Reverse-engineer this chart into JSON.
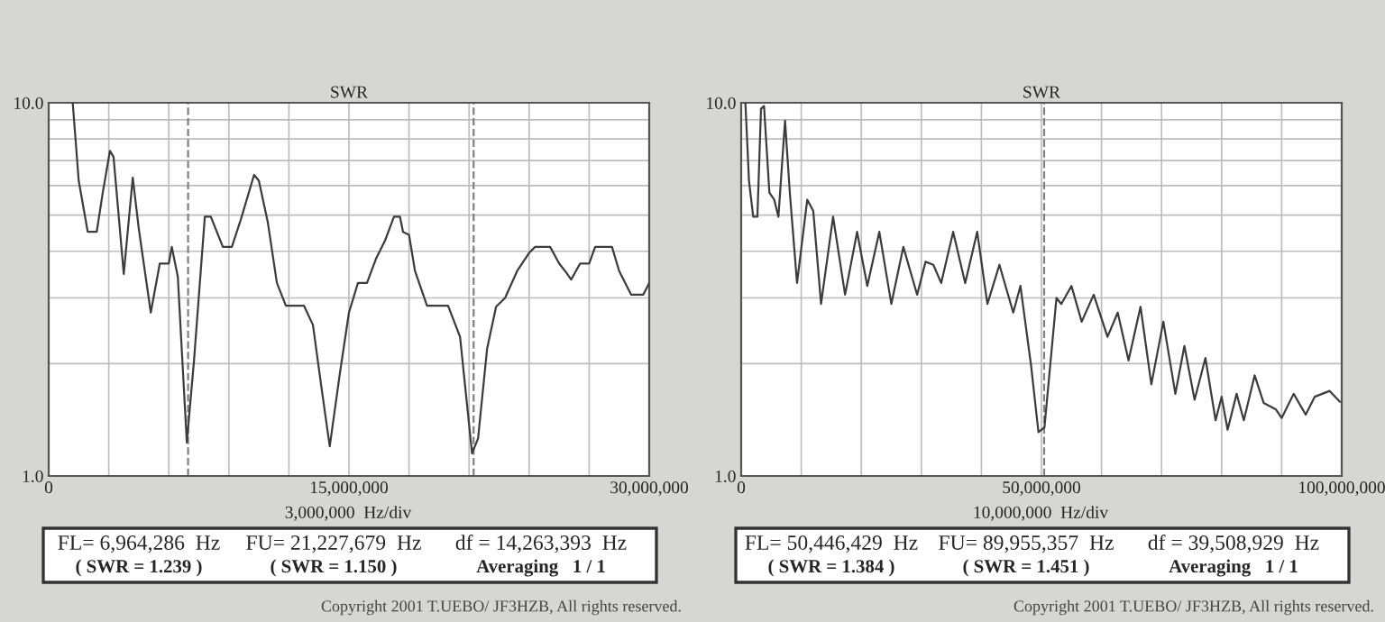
{
  "chart_data": [
    {
      "type": "line",
      "title": "SWR",
      "xlabel": "3,000,000  Hz/div",
      "log": "y",
      "grid": true,
      "marker": "none",
      "line_style": "solid",
      "xlim": [
        0,
        30000000
      ],
      "ylim": [
        1,
        10
      ],
      "xticks": [
        {
          "value": 0,
          "label": "0"
        },
        {
          "value": 3000000,
          "label": null
        },
        {
          "value": 6000000,
          "label": null
        },
        {
          "value": 9000000,
          "label": null
        },
        {
          "value": 12000000,
          "label": null
        },
        {
          "value": 15000000,
          "label": "15,000,000"
        },
        {
          "value": 18000000,
          "label": null
        },
        {
          "value": 21000000,
          "label": null
        },
        {
          "value": 24000000,
          "label": null
        },
        {
          "value": 27000000,
          "label": null
        },
        {
          "value": 30000000,
          "label": "30,000,000"
        }
      ],
      "yticks": [
        {
          "value": 1,
          "label": "1.0"
        },
        {
          "value": 2,
          "label": null
        },
        {
          "value": 3,
          "label": null
        },
        {
          "value": 4,
          "label": null
        },
        {
          "value": 5,
          "label": null
        },
        {
          "value": 6,
          "label": null
        },
        {
          "value": 7,
          "label": null
        },
        {
          "value": 8,
          "label": null
        },
        {
          "value": 9,
          "label": null
        },
        {
          "value": 10,
          "label": "10.0"
        }
      ],
      "ref_lines": [
        {
          "axis": "x",
          "value": 6964286,
          "color": "#808080",
          "line_style": "dashed"
        },
        {
          "axis": "x",
          "value": 21227679,
          "color": "#808080",
          "line_style": "dashed"
        }
      ],
      "series": [
        {
          "color": "#3c3c3c",
          "x": [
            1200000,
            1500000,
            1950000,
            2400000,
            2700000,
            3060000,
            3240000,
            3750000,
            4200000,
            4500000,
            5100000,
            5550000,
            6000000,
            6150000,
            6450000,
            6900000,
            7260000,
            7800000,
            8100000,
            8700000,
            9150000,
            9600000,
            10260000,
            10500000,
            10950000,
            11400000,
            11850000,
            12750000,
            13200000,
            13650000,
            14040000,
            14550000,
            15000000,
            15450000,
            15900000,
            16350000,
            16800000,
            17250000,
            17550000,
            17700000,
            18000000,
            18300000,
            18900000,
            19950000,
            20550000,
            21150000,
            21450000,
            21900000,
            22350000,
            22800000,
            23400000,
            24000000,
            24300000,
            25050000,
            25500000,
            25800000,
            26100000,
            26550000,
            27000000,
            27300000,
            28140000,
            28500000,
            29100000,
            29700000,
            30000000
          ],
          "values": [
            10,
            6.18,
            4.51,
            4.51,
            5.74,
            7.43,
            7.16,
            3.48,
            6.3,
            4.6,
            2.74,
            3.71,
            3.71,
            4.11,
            3.42,
            1.23,
            2.04,
            4.95,
            4.95,
            4.11,
            4.11,
            4.87,
            6.41,
            6.18,
            4.77,
            3.29,
            2.86,
            2.86,
            2.54,
            1.69,
            1.2,
            1.89,
            2.74,
            3.29,
            3.29,
            3.82,
            4.27,
            4.95,
            4.95,
            4.51,
            4.43,
            3.54,
            2.86,
            2.86,
            2.36,
            1.15,
            1.26,
            2.19,
            2.84,
            3.0,
            3.54,
            3.96,
            4.11,
            4.11,
            3.71,
            3.54,
            3.36,
            3.71,
            3.71,
            4.11,
            4.11,
            3.54,
            3.06,
            3.06,
            3.29
          ]
        }
      ],
      "annotations": [
        "FL= 6,964,286  Hz",
        "FU= 21,227,679  Hz",
        "df = 14,263,393  Hz",
        "( SWR = 1.239 )",
        "( SWR = 1.150 )",
        "Averaging   1 / 1",
        "Copyright 2001 T.UEBO/ JF3HZB, All rights reserved."
      ]
    },
    {
      "type": "line",
      "title": "SWR",
      "xlabel": "10,000,000  Hz/div",
      "log": "y",
      "grid": true,
      "marker": "none",
      "line_style": "solid",
      "xlim": [
        0,
        100000000
      ],
      "ylim": [
        1,
        10
      ],
      "xticks": [
        {
          "value": 0,
          "label": "0"
        },
        {
          "value": 10000000,
          "label": null
        },
        {
          "value": 20000000,
          "label": null
        },
        {
          "value": 30000000,
          "label": null
        },
        {
          "value": 40000000,
          "label": null
        },
        {
          "value": 50000000,
          "label": "50,000,000"
        },
        {
          "value": 60000000,
          "label": null
        },
        {
          "value": 70000000,
          "label": null
        },
        {
          "value": 80000000,
          "label": null
        },
        {
          "value": 90000000,
          "label": null
        },
        {
          "value": 100000000,
          "label": "100,000,000"
        }
      ],
      "yticks": [
        {
          "value": 1,
          "label": "1.0"
        },
        {
          "value": 2,
          "label": null
        },
        {
          "value": 3,
          "label": null
        },
        {
          "value": 4,
          "label": null
        },
        {
          "value": 5,
          "label": null
        },
        {
          "value": 6,
          "label": null
        },
        {
          "value": 7,
          "label": null
        },
        {
          "value": 8,
          "label": null
        },
        {
          "value": 9,
          "label": null
        },
        {
          "value": 10,
          "label": "10.0"
        }
      ],
      "ref_lines": [
        {
          "axis": "x",
          "value": 50446429,
          "color": "#808080",
          "line_style": "dashed"
        }
      ],
      "series": [
        {
          "color": "#3c3c3c",
          "x": [
            700000,
            1300000,
            2000000,
            2700000,
            3300000,
            3800000,
            4700000,
            5500000,
            6200000,
            7300000,
            8100000,
            9300000,
            11000000,
            12000000,
            13300000,
            15300000,
            17300000,
            19300000,
            21000000,
            23000000,
            25000000,
            27000000,
            29300000,
            30700000,
            32000000,
            33300000,
            35300000,
            37300000,
            39300000,
            41000000,
            43000000,
            45300000,
            46500000,
            48300000,
            49500000,
            50500000,
            52500000,
            53300000,
            55000000,
            56700000,
            58700000,
            61000000,
            62700000,
            64500000,
            66500000,
            68300000,
            70300000,
            72300000,
            73800000,
            75500000,
            77300000,
            79000000,
            80000000,
            81000000,
            82500000,
            83700000,
            85500000,
            87000000,
            89000000,
            90000000,
            92000000,
            94000000,
            95500000,
            98000000,
            99700000
          ],
          "values": [
            10,
            6.18,
            4.95,
            4.95,
            9.64,
            9.8,
            5.74,
            5.5,
            4.95,
            8.95,
            5.74,
            3.29,
            5.5,
            5.13,
            2.89,
            4.95,
            3.06,
            4.51,
            3.23,
            4.51,
            2.89,
            4.11,
            3.06,
            3.75,
            3.68,
            3.29,
            4.51,
            3.29,
            4.51,
            2.89,
            3.68,
            2.74,
            3.23,
            1.96,
            1.31,
            1.35,
            3.0,
            2.89,
            3.23,
            2.59,
            3.06,
            2.36,
            2.74,
            2.04,
            2.84,
            1.76,
            2.59,
            1.66,
            2.23,
            1.6,
            2.07,
            1.41,
            1.63,
            1.33,
            1.66,
            1.41,
            1.86,
            1.57,
            1.51,
            1.43,
            1.66,
            1.46,
            1.63,
            1.69,
            1.58
          ]
        }
      ],
      "annotations": [
        "FL= 50,446,429  Hz",
        "FU= 89,955,357  Hz",
        "df = 39,508,929  Hz",
        "( SWR = 1.384 )",
        "( SWR = 1.451 )",
        "Averaging   1 / 1",
        "Copyright 2001 T.UEBO/ JF3HZB, All rights reserved."
      ]
    }
  ]
}
